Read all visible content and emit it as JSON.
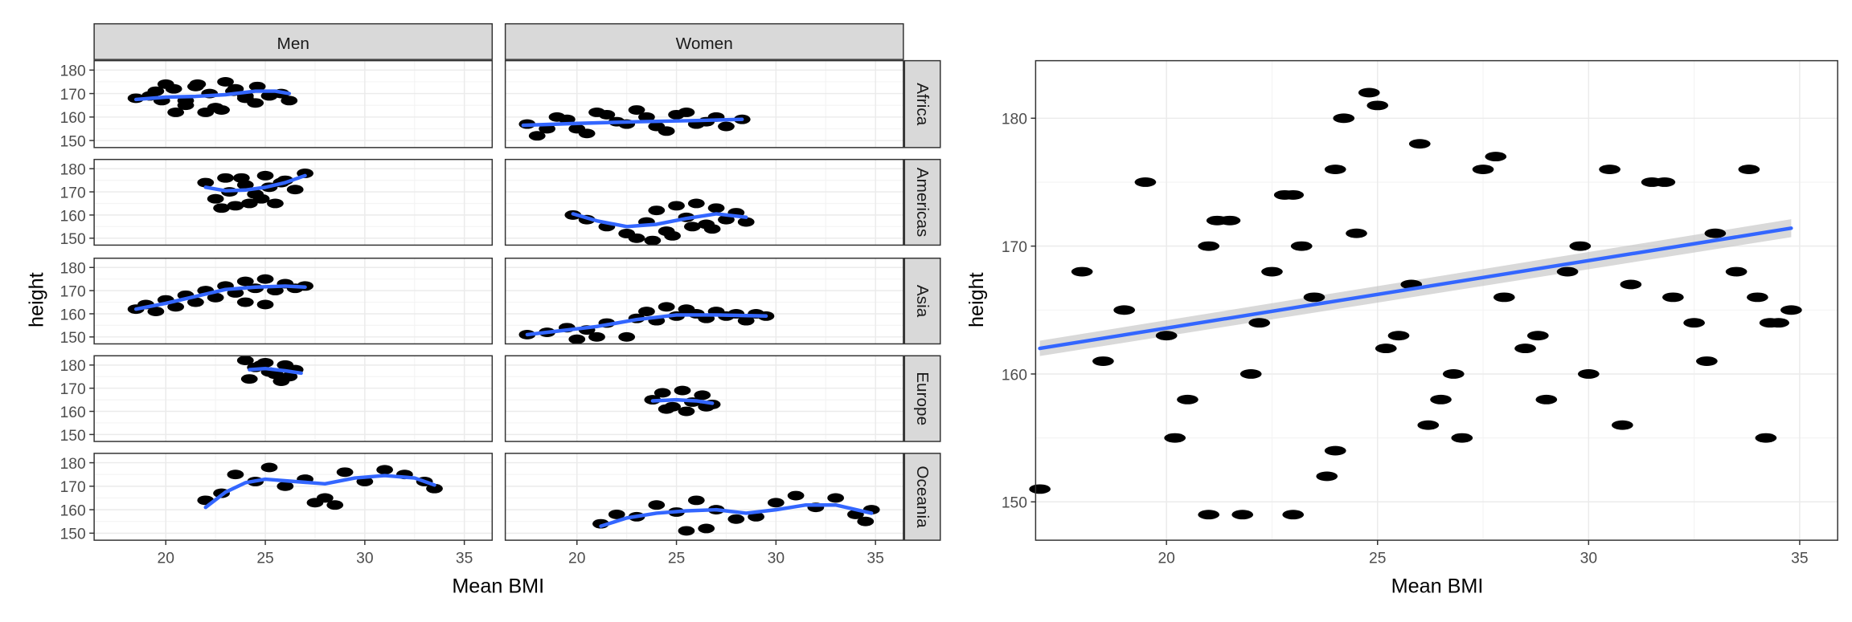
{
  "colors": {
    "points": "#000000",
    "smooth": "#3366FF",
    "ribbon": "#bfbfbf",
    "strip_fill": "#d9d9d9",
    "grid_major": "#ebebeb",
    "grid_minor": "#f4f4f4",
    "panel_border": "#333333"
  },
  "chart_data": [
    {
      "type": "scatter",
      "facet": "grid",
      "xlabel": "Mean BMI",
      "ylabel": "height",
      "xlim": [
        16.4,
        36.4
      ],
      "ylim": [
        147,
        184
      ],
      "xticks": [
        20,
        25,
        30,
        35
      ],
      "yticks": [
        150,
        160,
        170,
        180
      ],
      "columns": [
        "Men",
        "Women"
      ],
      "rows": [
        "Africa",
        "Americas",
        "Asia",
        "Europe",
        "Oceania"
      ],
      "smooth": "loess",
      "panels": [
        {
          "row": "Africa",
          "col": "Men",
          "x": [
            18.5,
            19.2,
            19.8,
            20.4,
            21.0,
            21.6,
            22.2,
            22.8,
            23.4,
            24.0,
            24.6,
            25.2,
            25.8,
            26.2,
            19.5,
            20.5,
            21.5,
            22.5,
            23.5,
            24.5,
            20.0,
            21.0,
            22.0,
            23.0,
            24.0
          ],
          "y": [
            168,
            169,
            167,
            172,
            165,
            174,
            170,
            163,
            171,
            168,
            173,
            169,
            170,
            167,
            171,
            162,
            173,
            164,
            172,
            166,
            174,
            167,
            162,
            175,
            169
          ],
          "smooth": [
            [
              18.5,
              167.5
            ],
            [
              20.0,
              168.5
            ],
            [
              21.5,
              168.8
            ],
            [
              23.0,
              169.5
            ],
            [
              24.5,
              171.0
            ],
            [
              25.5,
              171.0
            ],
            [
              26.2,
              170.0
            ]
          ]
        },
        {
          "row": "Africa",
          "col": "Women",
          "x": [
            17.5,
            18.5,
            19.5,
            20.5,
            21.5,
            22.5,
            23.5,
            24.5,
            25.5,
            26.5,
            27.5,
            28.3,
            18.0,
            19.0,
            20.0,
            21.0,
            22.0,
            23.0,
            24.0,
            25.0,
            26.0,
            27.0
          ],
          "y": [
            157,
            155,
            159,
            153,
            161,
            157,
            160,
            154,
            162,
            158,
            156,
            159,
            152,
            160,
            155,
            162,
            158,
            163,
            156,
            161,
            157,
            160
          ],
          "smooth": [
            [
              17.3,
              156.5
            ],
            [
              20.0,
              157.3
            ],
            [
              23.0,
              158.0
            ],
            [
              26.0,
              158.5
            ],
            [
              28.3,
              159.0
            ]
          ]
        },
        {
          "row": "Americas",
          "col": "Men",
          "x": [
            22.0,
            22.5,
            23.0,
            23.5,
            24.0,
            24.5,
            25.0,
            25.5,
            26.0,
            26.5,
            27.0,
            22.8,
            23.8,
            24.8,
            25.8,
            23.2,
            24.2,
            25.2
          ],
          "y": [
            174,
            167,
            176,
            164,
            173,
            169,
            177,
            165,
            175,
            171,
            178,
            163,
            176,
            167,
            174,
            170,
            165,
            172
          ],
          "smooth": [
            [
              22.0,
              172.0
            ],
            [
              23.0,
              170.5
            ],
            [
              24.0,
              170.8
            ],
            [
              25.0,
              172.0
            ],
            [
              26.0,
              174.0
            ],
            [
              27.0,
              177.0
            ]
          ]
        },
        {
          "row": "Americas",
          "col": "Women",
          "x": [
            19.8,
            20.5,
            21.5,
            22.5,
            23.0,
            23.5,
            24.0,
            24.5,
            25.0,
            25.5,
            26.0,
            26.5,
            27.0,
            27.5,
            28.0,
            28.5,
            23.8,
            24.8,
            25.8,
            26.8
          ],
          "y": [
            160,
            158,
            155,
            152,
            150,
            157,
            162,
            153,
            164,
            159,
            165,
            156,
            163,
            158,
            161,
            157,
            149,
            151,
            155,
            154
          ],
          "smooth": [
            [
              19.8,
              160.5
            ],
            [
              21.0,
              157.5
            ],
            [
              22.5,
              155.0
            ],
            [
              24.0,
              156.0
            ],
            [
              25.5,
              158.5
            ],
            [
              27.0,
              160.5
            ],
            [
              28.5,
              159.0
            ]
          ]
        },
        {
          "row": "Asia",
          "col": "Men",
          "x": [
            18.5,
            19.0,
            19.5,
            20.0,
            20.5,
            21.0,
            21.5,
            22.0,
            22.5,
            23.0,
            23.5,
            24.0,
            24.5,
            25.0,
            25.5,
            26.0,
            26.5,
            27.0,
            24.0,
            25.0
          ],
          "y": [
            162,
            164,
            161,
            166,
            163,
            168,
            165,
            170,
            167,
            172,
            169,
            174,
            171,
            175,
            170,
            173,
            171,
            172,
            165,
            164
          ],
          "smooth": [
            [
              18.5,
              162.0
            ],
            [
              20.0,
              164.5
            ],
            [
              21.5,
              167.5
            ],
            [
              23.0,
              170.5
            ],
            [
              24.5,
              171.5
            ],
            [
              26.0,
              172.0
            ],
            [
              27.0,
              171.5
            ]
          ]
        },
        {
          "row": "Asia",
          "col": "Women",
          "x": [
            17.5,
            18.5,
            19.5,
            20.5,
            21.5,
            22.5,
            23.0,
            23.5,
            24.0,
            24.5,
            25.0,
            25.5,
            26.0,
            26.5,
            27.0,
            27.5,
            28.0,
            28.5,
            29.0,
            29.5,
            20.0,
            21.0
          ],
          "y": [
            151,
            152,
            154,
            153,
            156,
            150,
            158,
            161,
            157,
            163,
            159,
            162,
            160,
            158,
            161,
            159,
            160,
            157,
            160,
            159,
            149,
            150
          ],
          "smooth": [
            [
              17.5,
              151.0
            ],
            [
              19.0,
              152.5
            ],
            [
              21.0,
              154.5
            ],
            [
              23.0,
              157.5
            ],
            [
              25.0,
              159.5
            ],
            [
              27.0,
              159.5
            ],
            [
              29.5,
              159.0
            ]
          ]
        },
        {
          "row": "Europe",
          "col": "Men",
          "x": [
            24.0,
            24.5,
            25.0,
            25.5,
            26.0,
            26.5,
            24.2,
            25.2,
            26.2,
            24.8,
            25.8
          ],
          "y": [
            182,
            179,
            181,
            176,
            180,
            178,
            174,
            177,
            175,
            180,
            173
          ],
          "smooth": [
            [
              24.2,
              178.0
            ],
            [
              25.0,
              178.5
            ],
            [
              26.0,
              177.5
            ],
            [
              26.8,
              176.5
            ]
          ]
        },
        {
          "row": "Europe",
          "col": "Women",
          "x": [
            23.8,
            24.3,
            24.8,
            25.3,
            25.8,
            26.3,
            26.8,
            24.5,
            25.5,
            26.5
          ],
          "y": [
            165,
            168,
            162,
            169,
            164,
            167,
            163,
            161,
            160,
            162
          ],
          "smooth": [
            [
              23.8,
              164.5
            ],
            [
              25.0,
              165.0
            ],
            [
              26.0,
              164.5
            ],
            [
              26.8,
              163.5
            ]
          ]
        },
        {
          "row": "Oceania",
          "col": "Men",
          "x": [
            22.0,
            22.8,
            23.5,
            24.5,
            25.2,
            26.0,
            27.0,
            28.0,
            29.0,
            30.0,
            31.0,
            32.0,
            33.0,
            33.5,
            27.5,
            28.5
          ],
          "y": [
            164,
            167,
            175,
            172,
            178,
            170,
            173,
            165,
            176,
            172,
            177,
            175,
            172,
            169,
            163,
            162
          ],
          "smooth": [
            [
              22.0,
              161.0
            ],
            [
              23.0,
              167.5
            ],
            [
              24.0,
              171.5
            ],
            [
              25.0,
              173.0
            ],
            [
              26.5,
              172.0
            ],
            [
              28.0,
              171.0
            ],
            [
              29.5,
              173.5
            ],
            [
              31.0,
              174.5
            ],
            [
              32.5,
              173.5
            ],
            [
              33.5,
              170.5
            ]
          ]
        },
        {
          "row": "Oceania",
          "col": "Women",
          "x": [
            21.2,
            22.0,
            23.0,
            24.0,
            25.0,
            26.0,
            27.0,
            28.0,
            29.0,
            30.0,
            31.0,
            32.0,
            33.0,
            34.0,
            34.8,
            25.5,
            26.5,
            34.5
          ],
          "y": [
            154,
            158,
            157,
            162,
            159,
            164,
            160,
            156,
            157,
            163,
            166,
            161,
            165,
            158,
            160,
            151,
            152,
            155
          ],
          "smooth": [
            [
              21.2,
              153.0
            ],
            [
              22.5,
              156.5
            ],
            [
              24.0,
              158.5
            ],
            [
              25.5,
              159.5
            ],
            [
              27.0,
              160.0
            ],
            [
              28.5,
              158.5
            ],
            [
              30.0,
              160.0
            ],
            [
              31.5,
              162.0
            ],
            [
              33.0,
              162.0
            ],
            [
              34.8,
              158.5
            ]
          ]
        }
      ]
    },
    {
      "type": "scatter",
      "xlabel": "Mean BMI",
      "ylabel": "height",
      "xlim": [
        16.9,
        35.9
      ],
      "ylim": [
        147,
        184.5
      ],
      "xticks": [
        20,
        25,
        30,
        35
      ],
      "yticks": [
        150,
        160,
        170,
        180
      ],
      "x": [
        17.0,
        18.0,
        19.0,
        20.0,
        20.5,
        21.0,
        21.5,
        22.0,
        22.5,
        23.0,
        23.5,
        24.0,
        24.5,
        25.0,
        25.5,
        26.0,
        26.5,
        27.0,
        27.5,
        28.0,
        28.5,
        29.0,
        29.5,
        30.0,
        30.5,
        31.0,
        31.5,
        32.0,
        32.5,
        33.0,
        33.5,
        34.0,
        34.5,
        19.5,
        20.2,
        21.2,
        22.2,
        23.2,
        24.2,
        25.2,
        26.2,
        22.8,
        23.8,
        24.8,
        25.8,
        26.8,
        18.5,
        21.8,
        27.8,
        28.8,
        29.8,
        30.8,
        31.8,
        32.8,
        33.8,
        34.8,
        34.3,
        34.2,
        21.0,
        23.0,
        24.0
      ],
      "y": [
        151,
        168,
        165,
        163,
        158,
        170,
        172,
        160,
        168,
        174,
        166,
        176,
        171,
        181,
        163,
        178,
        158,
        155,
        176,
        166,
        162,
        158,
        168,
        160,
        176,
        167,
        175,
        166,
        164,
        171,
        168,
        166,
        164,
        175,
        155,
        172,
        164,
        170,
        180,
        162,
        156,
        174,
        152,
        182,
        167,
        160,
        161,
        149,
        177,
        163,
        170,
        156,
        175,
        161,
        176,
        165,
        164,
        155,
        149,
        149,
        154
      ],
      "trend": {
        "x": [
          17.0,
          34.8
        ],
        "y": [
          162.0,
          171.4
        ],
        "se_half": [
          0.6,
          0.7
        ]
      }
    }
  ]
}
